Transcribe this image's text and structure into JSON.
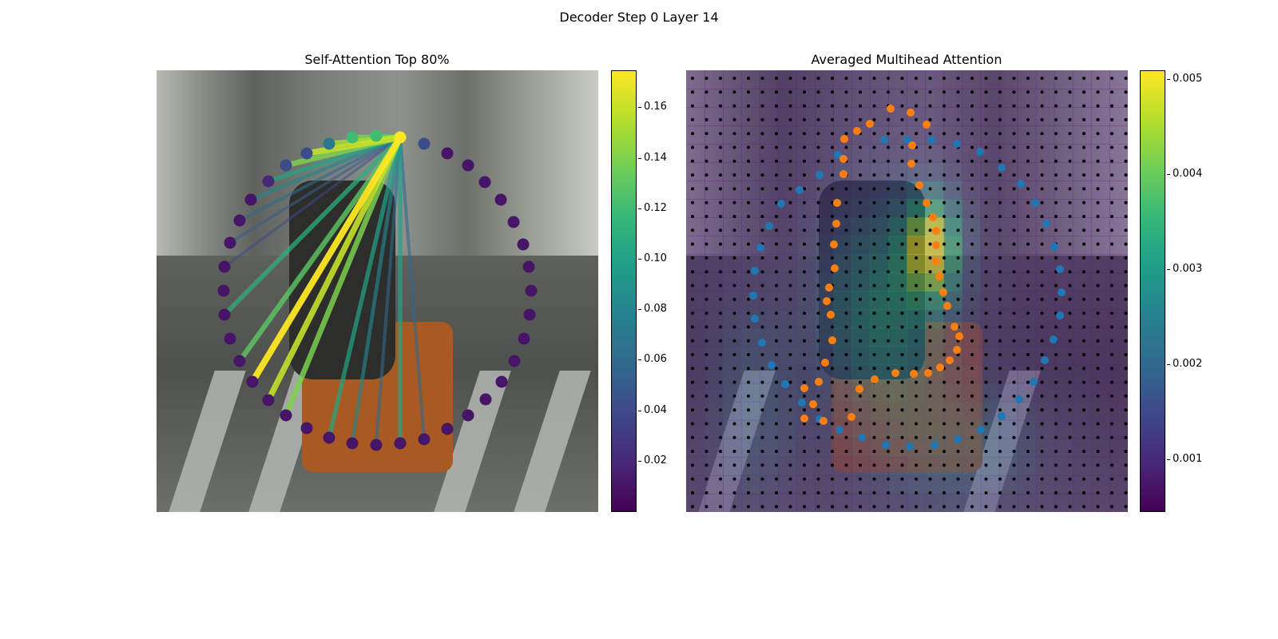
{
  "suptitle": "Decoder Step 0 Layer 14",
  "chart_data": [
    {
      "type": "scatter",
      "title": "Self-Attention Top 80%",
      "description_of_marks": "Polygon vertex tokens with self-attention lines from the query point; color = attention weight",
      "colorbar": {
        "min": 0.0,
        "max": 0.175,
        "ticks": [
          "0.02",
          "0.04",
          "0.06",
          "0.08",
          "0.10",
          "0.12",
          "0.14",
          "0.16"
        ],
        "colormap": "viridis"
      },
      "query_point": [
        305,
        84
      ],
      "points": [
        [
          305,
          84,
          0.175
        ],
        [
          275,
          82,
          0.12
        ],
        [
          245,
          84,
          0.12
        ],
        [
          216,
          92,
          0.07
        ],
        [
          188,
          104,
          0.04
        ],
        [
          162,
          119,
          0.04
        ],
        [
          140,
          139,
          0.02
        ],
        [
          118,
          162,
          0.01
        ],
        [
          104,
          188,
          0.01
        ],
        [
          92,
          216,
          0.01
        ],
        [
          85,
          246,
          0.01
        ],
        [
          84,
          276,
          0.01
        ],
        [
          85,
          306,
          0.01
        ],
        [
          92,
          336,
          0.01
        ],
        [
          104,
          364,
          0.01
        ],
        [
          120,
          390,
          0.01
        ],
        [
          140,
          413,
          0.01
        ],
        [
          162,
          432,
          0.01
        ],
        [
          188,
          448,
          0.01
        ],
        [
          216,
          460,
          0.01
        ],
        [
          245,
          467,
          0.01
        ],
        [
          275,
          469,
          0.01
        ],
        [
          305,
          467,
          0.01
        ],
        [
          335,
          462,
          0.01
        ],
        [
          364,
          449,
          0.01
        ],
        [
          390,
          432,
          0.01
        ],
        [
          412,
          412,
          0.01
        ],
        [
          432,
          390,
          0.01
        ],
        [
          448,
          364,
          0.01
        ],
        [
          460,
          336,
          0.01
        ],
        [
          467,
          306,
          0.01
        ],
        [
          469,
          276,
          0.01
        ],
        [
          466,
          246,
          0.01
        ],
        [
          459,
          218,
          0.01
        ],
        [
          447,
          190,
          0.01
        ],
        [
          431,
          162,
          0.01
        ],
        [
          411,
          140,
          0.01
        ],
        [
          390,
          119,
          0.01
        ],
        [
          364,
          104,
          0.01
        ],
        [
          335,
          92,
          0.04
        ]
      ],
      "lines": [
        {
          "to": [
            162,
            119
          ],
          "w": 0.14
        },
        {
          "to": [
            140,
            139
          ],
          "w": 0.1
        },
        {
          "to": [
            118,
            162
          ],
          "w": 0.08
        },
        {
          "to": [
            104,
            188
          ],
          "w": 0.06
        },
        {
          "to": [
            85,
            306
          ],
          "w": 0.11
        },
        {
          "to": [
            104,
            364
          ],
          "w": 0.13
        },
        {
          "to": [
            120,
            390
          ],
          "w": 0.175
        },
        {
          "to": [
            140,
            413
          ],
          "w": 0.16
        },
        {
          "to": [
            162,
            432
          ],
          "w": 0.14
        },
        {
          "to": [
            216,
            460
          ],
          "w": 0.1
        },
        {
          "to": [
            245,
            467
          ],
          "w": 0.08
        },
        {
          "to": [
            275,
            469
          ],
          "w": 0.06
        },
        {
          "to": [
            305,
            467
          ],
          "w": 0.1
        },
        {
          "to": [
            335,
            462
          ],
          "w": 0.06
        },
        {
          "to": [
            188,
            104
          ],
          "w": 0.16
        },
        {
          "to": [
            216,
            92
          ],
          "w": 0.15
        },
        {
          "to": [
            245,
            84
          ],
          "w": 0.14
        },
        {
          "to": [
            275,
            82
          ],
          "w": 0.12
        },
        {
          "to": [
            85,
            246
          ],
          "w": 0.04
        },
        {
          "to": [
            92,
            216
          ],
          "w": 0.05
        }
      ]
    },
    {
      "type": "heatmap",
      "title": "Averaged Multihead Attention",
      "colorbar": {
        "min": 0.00045,
        "max": 0.0051,
        "ticks": [
          "0.001",
          "0.002",
          "0.003",
          "0.004",
          "0.005"
        ],
        "colormap": "viridis"
      },
      "series": [
        {
          "name": "",
          "color": "#1f77b4",
          "points": [
            [
              190,
              106
            ],
            [
              167,
              131
            ],
            [
              142,
              150
            ],
            [
              119,
              167
            ],
            [
              104,
              195
            ],
            [
              93,
              222
            ],
            [
              86,
              251
            ],
            [
              84,
              282
            ],
            [
              86,
              311
            ],
            [
              95,
              341
            ],
            [
              107,
              369
            ],
            [
              124,
              393
            ],
            [
              145,
              416
            ],
            [
              167,
              437
            ],
            [
              192,
              450
            ],
            [
              220,
              460
            ],
            [
              250,
              469
            ],
            [
              280,
              471
            ],
            [
              311,
              469
            ],
            [
              340,
              462
            ],
            [
              369,
              450
            ],
            [
              395,
              433
            ],
            [
              417,
              412
            ],
            [
              435,
              390
            ],
            [
              449,
              363
            ],
            [
              460,
              337
            ],
            [
              468,
              307
            ],
            [
              470,
              278
            ],
            [
              468,
              249
            ],
            [
              461,
              221
            ],
            [
              451,
              192
            ],
            [
              437,
              166
            ],
            [
              419,
              142
            ],
            [
              395,
              122
            ],
            [
              368,
              102
            ],
            [
              339,
              92
            ],
            [
              307,
              87
            ],
            [
              277,
              87
            ],
            [
              248,
              87
            ]
          ]
        },
        {
          "name": "",
          "color": "#ff7f0e",
          "points": [
            [
              256,
              48
            ],
            [
              281,
              53
            ],
            [
              301,
              68
            ],
            [
              283,
              94
            ],
            [
              282,
              117
            ],
            [
              292,
              144
            ],
            [
              301,
              166
            ],
            [
              309,
              184
            ],
            [
              313,
              201
            ],
            [
              313,
              219
            ],
            [
              313,
              239
            ],
            [
              317,
              258
            ],
            [
              322,
              278
            ],
            [
              327,
              295
            ],
            [
              336,
              321
            ],
            [
              342,
              333
            ],
            [
              339,
              350
            ],
            [
              330,
              363
            ],
            [
              318,
              372
            ],
            [
              303,
              379
            ],
            [
              285,
              380
            ],
            [
              262,
              379
            ],
            [
              236,
              387
            ],
            [
              217,
              399
            ],
            [
              207,
              434
            ],
            [
              172,
              439
            ],
            [
              148,
              436
            ],
            [
              148,
              398
            ],
            [
              159,
              418
            ],
            [
              166,
              390
            ],
            [
              174,
              366
            ],
            [
              183,
              338
            ],
            [
              181,
              306
            ],
            [
              176,
              289
            ],
            [
              179,
              272
            ],
            [
              186,
              248
            ],
            [
              185,
              218
            ],
            [
              188,
              192
            ],
            [
              189,
              166
            ],
            [
              197,
              130
            ],
            [
              197,
              111
            ],
            [
              230,
              67
            ],
            [
              214,
              76
            ],
            [
              198,
              86
            ]
          ]
        }
      ],
      "heatmap_grid": "24x24 attention averaged over heads, brightest near center-right (torso region)"
    }
  ]
}
